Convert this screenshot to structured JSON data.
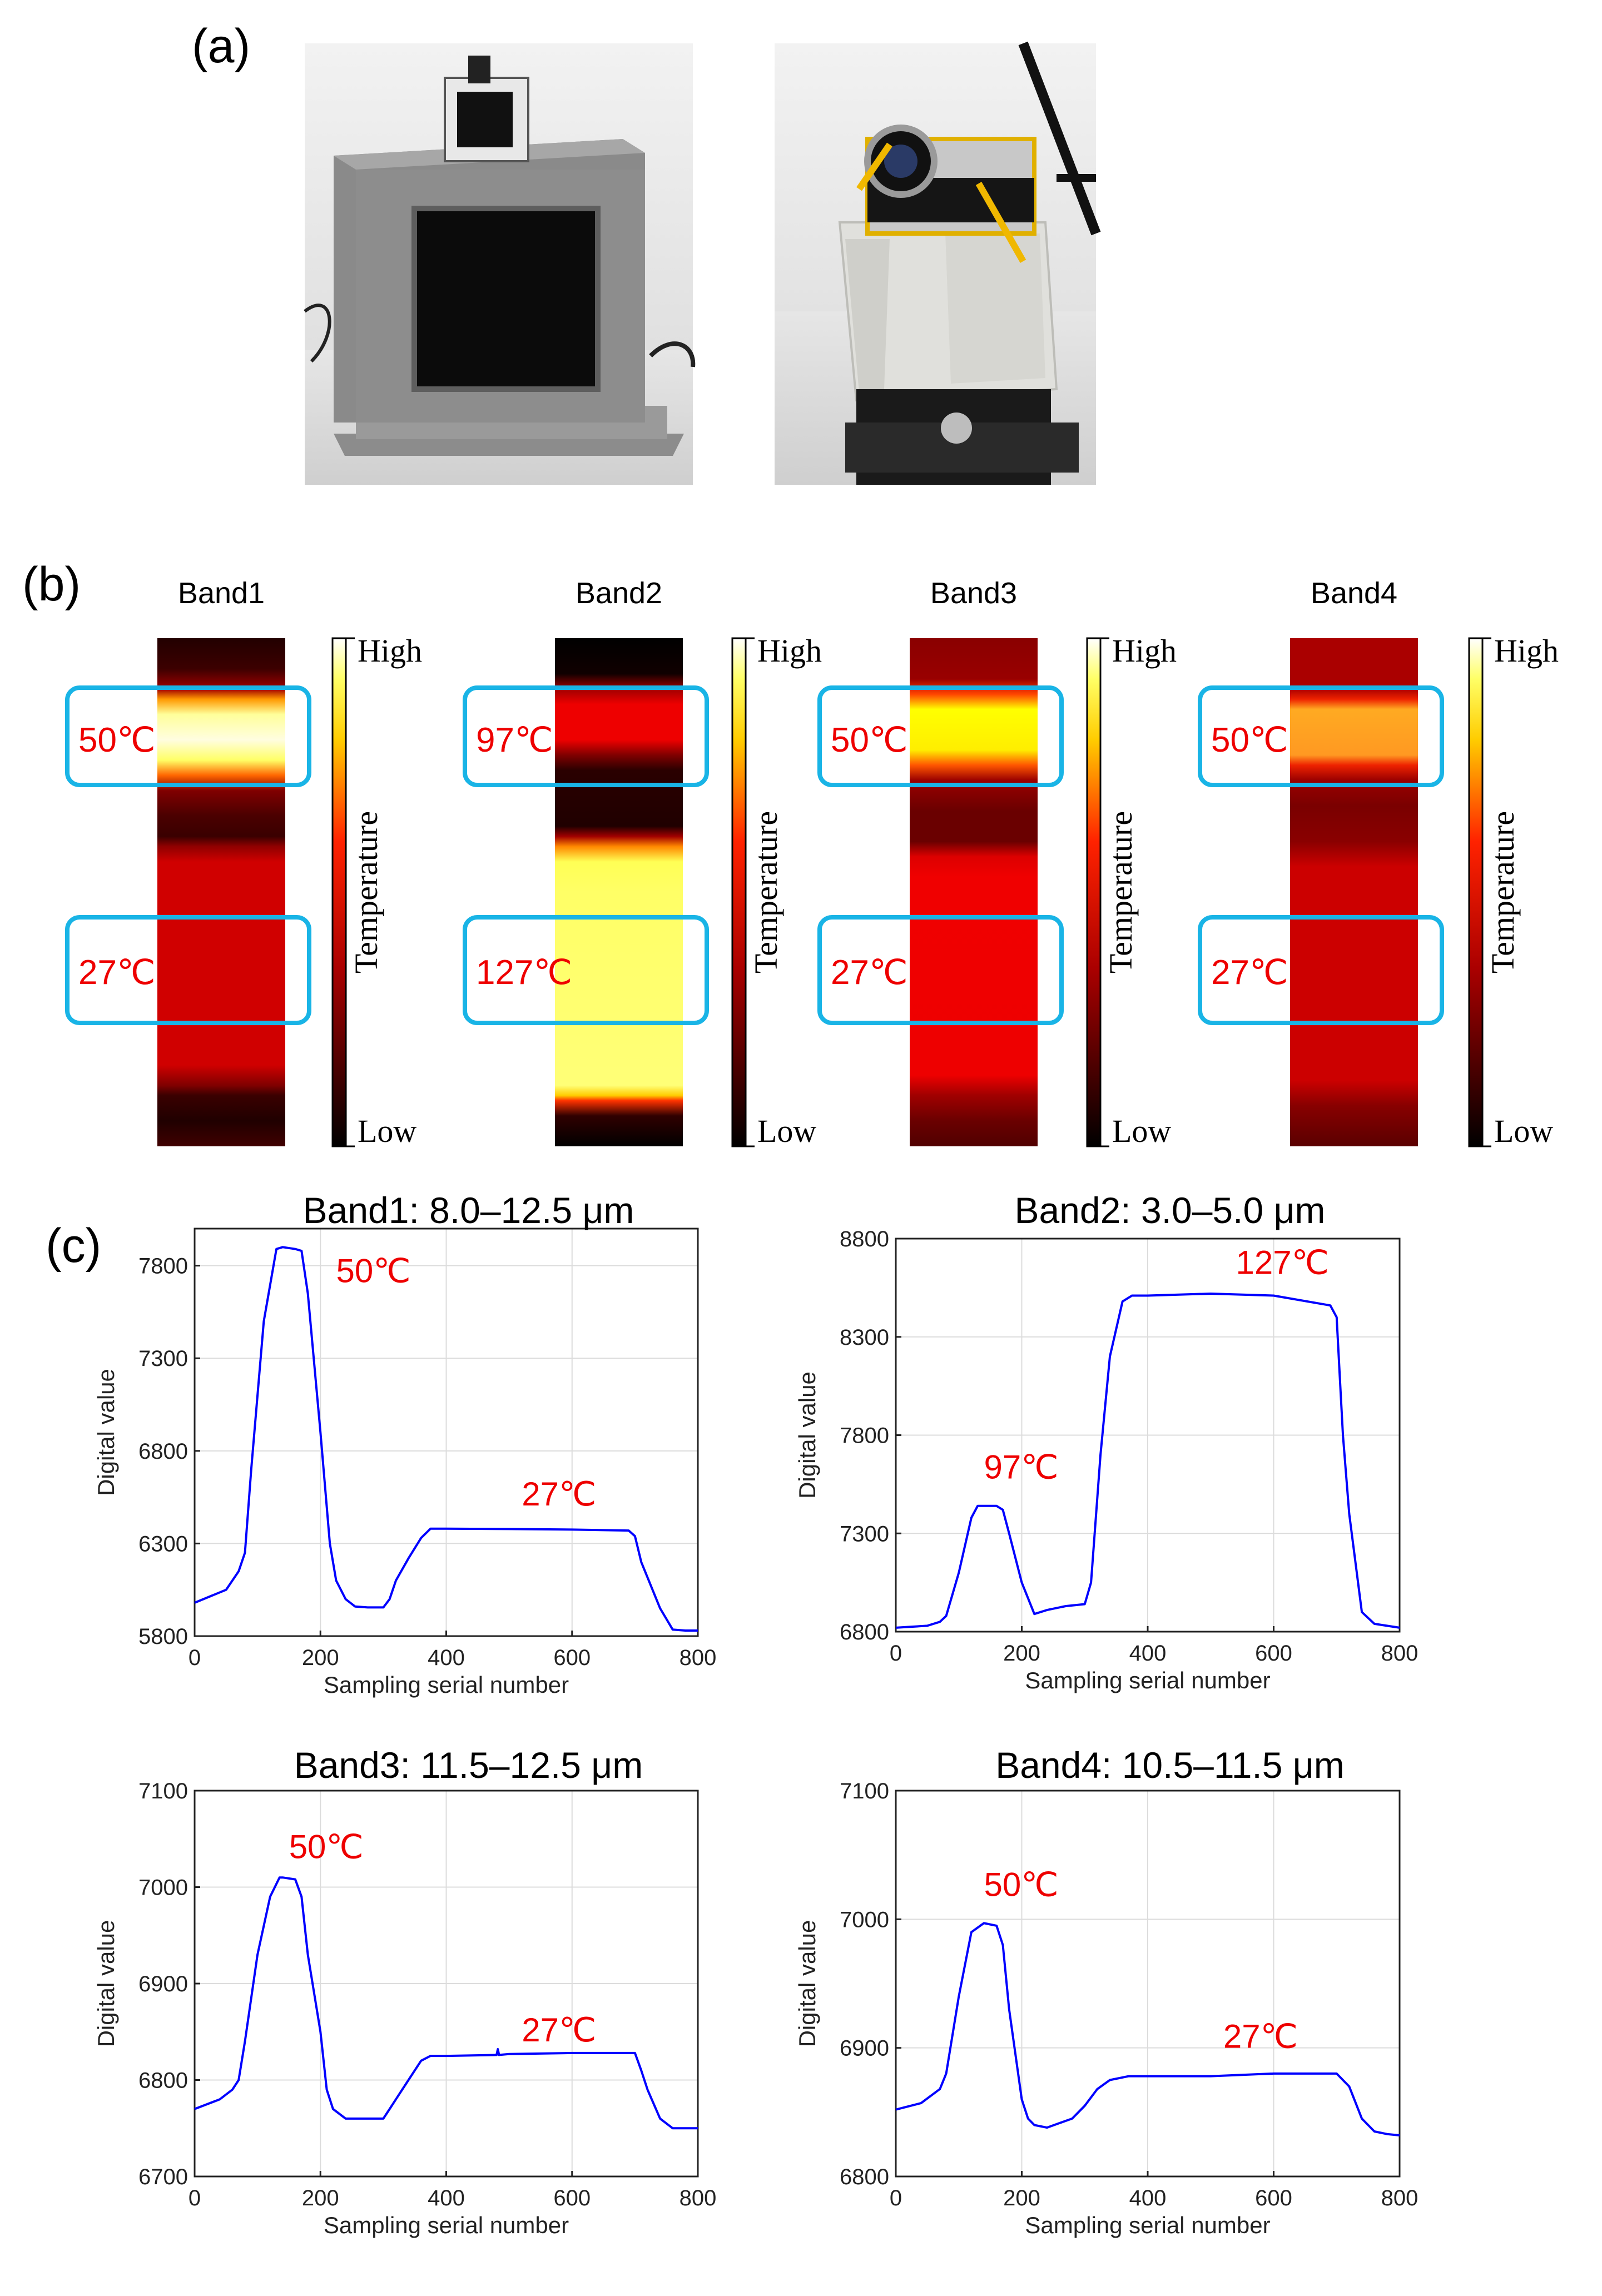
{
  "panel_labels": {
    "a": "(a)",
    "b": "(b)",
    "c": "(c)"
  },
  "photos": {
    "left": {
      "name": "blackbody-source-photo"
    },
    "right": {
      "name": "thermal-camera-on-turntable-photo"
    }
  },
  "colorbar": {
    "high": "High",
    "low": "Low",
    "title": "Temperature"
  },
  "heatmaps": [
    {
      "band": "Band1",
      "top_box_label": "50℃",
      "bottom_box_label": "27℃",
      "stops": [
        [
          0.0,
          "#220000"
        ],
        [
          0.06,
          "#3c0000"
        ],
        [
          0.1,
          "#a00000"
        ],
        [
          0.12,
          "#ff9900"
        ],
        [
          0.15,
          "#ffff9a"
        ],
        [
          0.2,
          "#fffde0"
        ],
        [
          0.24,
          "#ffff66"
        ],
        [
          0.27,
          "#ff6600"
        ],
        [
          0.3,
          "#800000"
        ],
        [
          0.35,
          "#4a0000"
        ],
        [
          0.39,
          "#3a0000"
        ],
        [
          0.41,
          "#900000"
        ],
        [
          0.44,
          "#d00000"
        ],
        [
          0.84,
          "#d00000"
        ],
        [
          0.88,
          "#800000"
        ],
        [
          0.9,
          "#3a0000"
        ],
        [
          0.95,
          "#200000"
        ],
        [
          1.0,
          "#400000"
        ]
      ]
    },
    {
      "band": "Band2",
      "top_box_label": "97℃",
      "bottom_box_label": "127℃",
      "stops": [
        [
          0.0,
          "#000000"
        ],
        [
          0.07,
          "#100000"
        ],
        [
          0.1,
          "#a00000"
        ],
        [
          0.13,
          "#ee0000"
        ],
        [
          0.2,
          "#ee0000"
        ],
        [
          0.23,
          "#800000"
        ],
        [
          0.26,
          "#2a0000"
        ],
        [
          0.37,
          "#200000"
        ],
        [
          0.39,
          "#a00000"
        ],
        [
          0.41,
          "#ff8800"
        ],
        [
          0.44,
          "#ffff55"
        ],
        [
          0.5,
          "#ffff66"
        ],
        [
          0.88,
          "#ffff77"
        ],
        [
          0.9,
          "#ffcc00"
        ],
        [
          0.91,
          "#ff3300"
        ],
        [
          0.94,
          "#300000"
        ],
        [
          1.0,
          "#000000"
        ]
      ]
    },
    {
      "band": "Band3",
      "top_box_label": "50℃",
      "bottom_box_label": "27℃",
      "stops": [
        [
          0.0,
          "#8a0000"
        ],
        [
          0.08,
          "#990000"
        ],
        [
          0.11,
          "#ff4400"
        ],
        [
          0.14,
          "#ffff00"
        ],
        [
          0.22,
          "#ffee00"
        ],
        [
          0.25,
          "#ff5500"
        ],
        [
          0.28,
          "#990000"
        ],
        [
          0.34,
          "#6a0000"
        ],
        [
          0.4,
          "#6a0000"
        ],
        [
          0.43,
          "#dd0000"
        ],
        [
          0.47,
          "#f00000"
        ],
        [
          0.86,
          "#ee0000"
        ],
        [
          0.9,
          "#a00000"
        ],
        [
          0.95,
          "#6a0000"
        ],
        [
          1.0,
          "#500000"
        ]
      ]
    },
    {
      "band": "Band4",
      "top_box_label": "50℃",
      "bottom_box_label": "27℃",
      "stops": [
        [
          0.0,
          "#aa0000"
        ],
        [
          0.1,
          "#aa0000"
        ],
        [
          0.12,
          "#ee2200"
        ],
        [
          0.14,
          "#ffaa22"
        ],
        [
          0.23,
          "#ff9922"
        ],
        [
          0.25,
          "#ee2200"
        ],
        [
          0.28,
          "#990000"
        ],
        [
          0.33,
          "#7a0000"
        ],
        [
          0.4,
          "#8a0000"
        ],
        [
          0.45,
          "#cc0000"
        ],
        [
          0.87,
          "#cc0000"
        ],
        [
          0.92,
          "#880000"
        ],
        [
          1.0,
          "#5a0000"
        ]
      ]
    }
  ],
  "chart_data": [
    {
      "type": "line",
      "title": "Band1: 8.0–12.5 μm",
      "xlabel": "Sampling serial number",
      "ylabel": "Digital value",
      "xlim": [
        0,
        800
      ],
      "ylim": [
        5800,
        8000
      ],
      "xticks": [
        0,
        200,
        400,
        600,
        800
      ],
      "yticks": [
        5800,
        6300,
        6800,
        7300,
        7800
      ],
      "grid": true,
      "series": [
        {
          "name": "Band1",
          "color": "#0000ff",
          "x": [
            0,
            50,
            70,
            80,
            90,
            110,
            130,
            140,
            160,
            170,
            180,
            200,
            215,
            225,
            240,
            255,
            275,
            300,
            310,
            320,
            340,
            360,
            375,
            400,
            500,
            600,
            690,
            700,
            710,
            740,
            760,
            780,
            800
          ],
          "y": [
            5980,
            6050,
            6150,
            6250,
            6700,
            7500,
            7890,
            7900,
            7890,
            7880,
            7650,
            6900,
            6300,
            6100,
            6000,
            5960,
            5955,
            5955,
            6000,
            6100,
            6220,
            6330,
            6380,
            6380,
            6378,
            6375,
            6370,
            6340,
            6200,
            5950,
            5835,
            5830,
            5830
          ]
        }
      ],
      "annotations": [
        {
          "text": "50℃",
          "x": 225,
          "y": 7710
        },
        {
          "text": "27℃",
          "x": 520,
          "y": 6505
        }
      ]
    },
    {
      "type": "line",
      "title": "Band2: 3.0–5.0 μm",
      "xlabel": "Sampling serial number",
      "ylabel": "Digital value",
      "xlim": [
        0,
        800
      ],
      "ylim": [
        6800,
        8800
      ],
      "xticks": [
        0,
        200,
        400,
        600,
        800
      ],
      "yticks": [
        6800,
        7300,
        7800,
        8300,
        8800
      ],
      "grid": true,
      "series": [
        {
          "name": "Band2",
          "color": "#0000ff",
          "x": [
            0,
            50,
            70,
            80,
            100,
            120,
            130,
            160,
            170,
            180,
            200,
            220,
            240,
            270,
            300,
            310,
            325,
            340,
            360,
            375,
            400,
            500,
            600,
            690,
            700,
            705,
            710,
            720,
            740,
            760,
            780,
            800
          ],
          "y": [
            6820,
            6830,
            6850,
            6880,
            7100,
            7380,
            7440,
            7440,
            7420,
            7300,
            7050,
            6890,
            6910,
            6930,
            6940,
            7050,
            7700,
            8200,
            8480,
            8510,
            8510,
            8520,
            8510,
            8460,
            8400,
            8100,
            7800,
            7400,
            6900,
            6840,
            6830,
            6820
          ]
        }
      ],
      "annotations": [
        {
          "text": "97℃",
          "x": 140,
          "y": 7580
        },
        {
          "text": "127℃",
          "x": 540,
          "y": 8620
        }
      ]
    },
    {
      "type": "line",
      "title": "Band3: 11.5–12.5 μm",
      "xlabel": "Sampling serial number",
      "ylabel": "Digital value",
      "xlim": [
        0,
        800
      ],
      "ylim": [
        6700,
        7100
      ],
      "xticks": [
        0,
        200,
        400,
        600,
        800
      ],
      "yticks": [
        6700,
        6800,
        6900,
        7000,
        7100
      ],
      "grid": true,
      "series": [
        {
          "name": "Band3",
          "color": "#0000ff",
          "x": [
            0,
            40,
            60,
            70,
            80,
            100,
            120,
            135,
            140,
            160,
            170,
            180,
            200,
            210,
            220,
            240,
            260,
            300,
            310,
            320,
            340,
            360,
            375,
            400,
            480,
            482,
            484,
            500,
            600,
            700,
            710,
            720,
            740,
            760,
            780,
            800
          ],
          "y": [
            6770,
            6780,
            6790,
            6800,
            6840,
            6930,
            6990,
            7010,
            7010,
            7008,
            6990,
            6930,
            6850,
            6790,
            6770,
            6760,
            6760,
            6760,
            6770,
            6780,
            6800,
            6820,
            6825,
            6825,
            6826,
            6832,
            6826,
            6827,
            6828,
            6828,
            6810,
            6790,
            6760,
            6750,
            6750,
            6750
          ]
        }
      ],
      "annotations": [
        {
          "text": "50℃",
          "x": 150,
          "y": 7030
        },
        {
          "text": "27℃",
          "x": 520,
          "y": 6840
        }
      ]
    },
    {
      "type": "line",
      "title": "Band4: 10.5–11.5 μm",
      "xlabel": "Sampling serial number",
      "ylabel": "Digital value",
      "xlim": [
        0,
        800
      ],
      "ylim": [
        6800,
        7100
      ],
      "xticks": [
        0,
        200,
        400,
        600,
        800
      ],
      "yticks": [
        6800,
        6900,
        7000,
        7100
      ],
      "grid": true,
      "series": [
        {
          "name": "Band4",
          "color": "#0000ff",
          "x": [
            0,
            40,
            70,
            80,
            100,
            120,
            140,
            160,
            170,
            180,
            200,
            210,
            220,
            240,
            280,
            300,
            320,
            340,
            370,
            400,
            500,
            600,
            700,
            720,
            740,
            760,
            780,
            800
          ],
          "y": [
            6852,
            6857,
            6868,
            6880,
            6940,
            6990,
            6997,
            6995,
            6980,
            6930,
            6860,
            6845,
            6840,
            6838,
            6845,
            6855,
            6868,
            6875,
            6878,
            6878,
            6878,
            6880,
            6880,
            6870,
            6845,
            6835,
            6833,
            6832
          ]
        }
      ],
      "annotations": [
        {
          "text": "50℃",
          "x": 140,
          "y": 7018
        },
        {
          "text": "27℃",
          "x": 520,
          "y": 6900
        }
      ]
    }
  ]
}
